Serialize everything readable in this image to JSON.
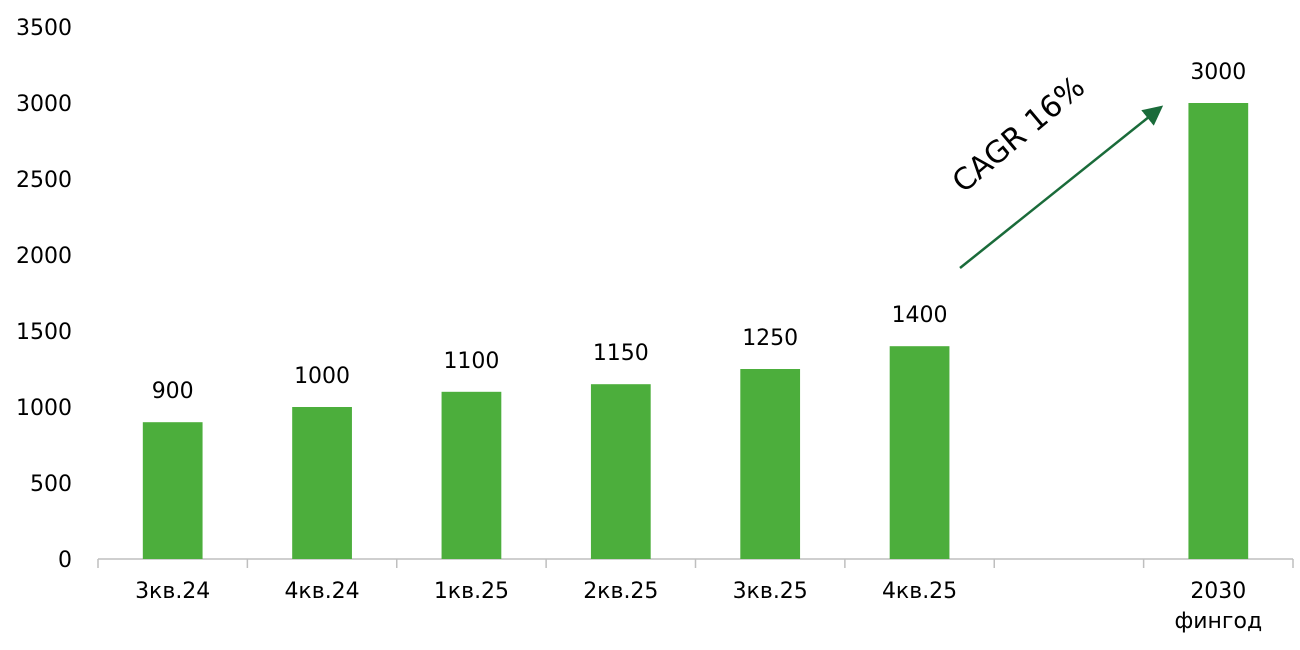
{
  "chart_data": {
    "type": "bar",
    "categories": [
      "3кв.24",
      "4кв.24",
      "1кв.25",
      "2кв.25",
      "3кв.25",
      "4кв.25",
      null,
      "2030 фингод"
    ],
    "values": [
      900,
      1000,
      1100,
      1150,
      1250,
      1400,
      null,
      3000
    ],
    "color": "#4cae3c",
    "ylim": [
      0,
      3500
    ],
    "yticks": [
      0,
      500,
      1000,
      1500,
      2000,
      2500,
      3000,
      3500
    ],
    "annotation": "CAGR 16%"
  }
}
